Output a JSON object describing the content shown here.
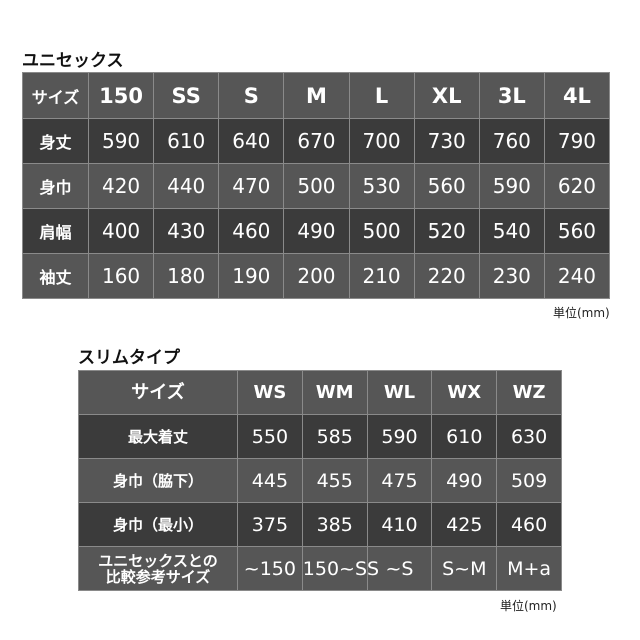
{
  "unisex": {
    "title": "ユニセックス",
    "header": [
      "サイズ",
      "150",
      "SS",
      "S",
      "M",
      "L",
      "XL",
      "3L",
      "4L"
    ],
    "rows": [
      [
        "身丈",
        "590",
        "610",
        "640",
        "670",
        "700",
        "730",
        "760",
        "790"
      ],
      [
        "身巾",
        "420",
        "440",
        "470",
        "500",
        "530",
        "560",
        "590",
        "620"
      ],
      [
        "肩幅",
        "400",
        "430",
        "460",
        "490",
        "500",
        "520",
        "540",
        "560"
      ],
      [
        "袖丈",
        "160",
        "180",
        "190",
        "200",
        "210",
        "220",
        "230",
        "240"
      ]
    ],
    "unit": "単位(mm)"
  },
  "slim": {
    "title": "スリムタイプ",
    "header": [
      "サイズ",
      "WS",
      "WM",
      "WL",
      "WX",
      "WZ"
    ],
    "rows": [
      [
        "最大着丈",
        "550",
        "585",
        "590",
        "610",
        "630"
      ],
      [
        "身巾（脇下）",
        "445",
        "455",
        "475",
        "490",
        "509"
      ],
      [
        "身巾（最小）",
        "375",
        "385",
        "410",
        "425",
        "460"
      ],
      [
        "ユニセックスとの\n比較参考サイズ",
        "~150",
        "150~SS",
        "~S",
        "S~M",
        "M+a"
      ]
    ],
    "unit": "単位(mm)"
  },
  "colors": {
    "header_row": "#565656",
    "dark_row": "#3b3b3b",
    "text": "#ffffff"
  }
}
